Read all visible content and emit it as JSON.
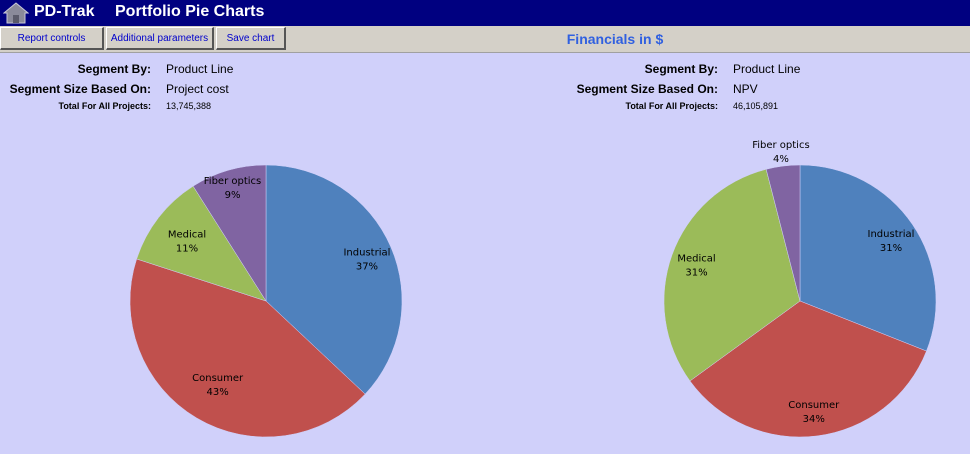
{
  "app": {
    "name": "PD-Trak",
    "page_title": "Portfolio Pie Charts"
  },
  "toolbar": {
    "report_controls": "Report controls",
    "additional_parameters": "Additional parameters",
    "save_chart": "Save chart",
    "section_title": "Financials in $"
  },
  "left": {
    "segment_by_label": "Segment By:",
    "segment_by_value": "Product Line",
    "size_label": "Segment Size Based On:",
    "size_value": "Project cost",
    "total_label": "Total For All Projects:",
    "total_value": "13,745,388"
  },
  "right": {
    "segment_by_label": "Segment By:",
    "segment_by_value": "Product Line",
    "size_label": "Segment Size Based On:",
    "size_value": "NPV",
    "total_label": "Total For All Projects:",
    "total_value": "46,105,891"
  },
  "chart_data": [
    {
      "type": "pie",
      "title": "",
      "categories": [
        "Industrial",
        "Consumer",
        "Medical",
        "Fiber optics"
      ],
      "values": [
        37,
        43,
        11,
        9
      ],
      "labels": [
        "37%",
        "43%",
        "11%",
        "9%"
      ],
      "colors": [
        "#4f81bd",
        "#c0504d",
        "#9bbb59",
        "#8064a2"
      ],
      "start": "12 o'clock",
      "direction": "clockwise"
    },
    {
      "type": "pie",
      "title": "",
      "categories": [
        "Industrial",
        "Consumer",
        "Medical",
        "Fiber optics"
      ],
      "values": [
        31,
        34,
        31,
        4
      ],
      "labels": [
        "31%",
        "34%",
        "31%",
        "4%"
      ],
      "colors": [
        "#4f81bd",
        "#c0504d",
        "#9bbb59",
        "#8064a2"
      ],
      "start": "12 o'clock",
      "direction": "clockwise"
    }
  ]
}
